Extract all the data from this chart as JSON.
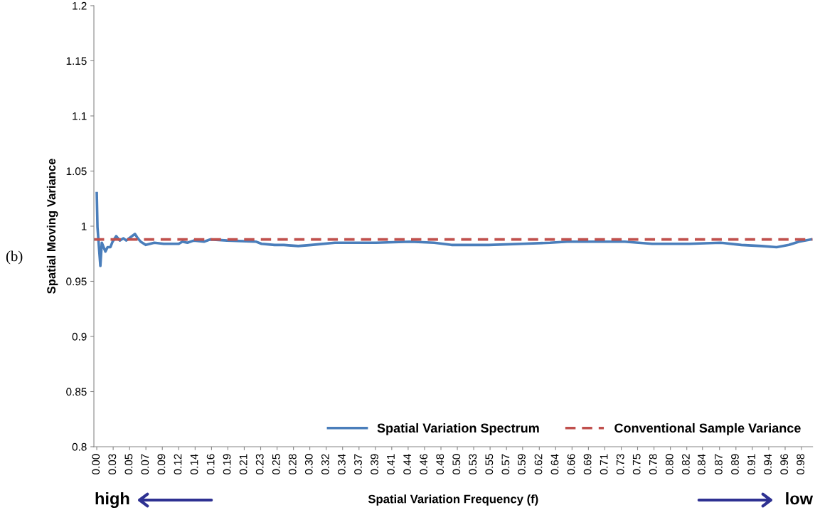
{
  "chart_data": {
    "type": "line",
    "xlabel": "Spatial Variation Frequency (f)",
    "ylabel": "Spatial Moving Variance",
    "xlim": [
      -0.001,
      0.998
    ],
    "ylim": [
      0.8,
      1.2
    ],
    "yticks": [
      0.8,
      0.85,
      0.9,
      0.95,
      1,
      1.05,
      1.1,
      1.15,
      1.2
    ],
    "xticks": [
      {
        "value": 0.003,
        "label": "0.00"
      },
      {
        "value": 0.0258,
        "label": "0.03"
      },
      {
        "value": 0.0486,
        "label": "0.05"
      },
      {
        "value": 0.0713,
        "label": "0.07"
      },
      {
        "value": 0.0941,
        "label": "0.09"
      },
      {
        "value": 0.1169,
        "label": "0.12"
      },
      {
        "value": 0.1397,
        "label": "0.14"
      },
      {
        "value": 0.1625,
        "label": "0.16"
      },
      {
        "value": 0.1852,
        "label": "0.19"
      },
      {
        "value": 0.208,
        "label": "0.21"
      },
      {
        "value": 0.2308,
        "label": "0.23"
      },
      {
        "value": 0.2536,
        "label": "0.25"
      },
      {
        "value": 0.2764,
        "label": "0.28"
      },
      {
        "value": 0.2991,
        "label": "0.30"
      },
      {
        "value": 0.3219,
        "label": "0.32"
      },
      {
        "value": 0.3447,
        "label": "0.34"
      },
      {
        "value": 0.3675,
        "label": "0.37"
      },
      {
        "value": 0.3903,
        "label": "0.39"
      },
      {
        "value": 0.413,
        "label": "0.41"
      },
      {
        "value": 0.4358,
        "label": "0.44"
      },
      {
        "value": 0.4586,
        "label": "0.46"
      },
      {
        "value": 0.4814,
        "label": "0.48"
      },
      {
        "value": 0.5042,
        "label": "0.50"
      },
      {
        "value": 0.5269,
        "label": "0.53"
      },
      {
        "value": 0.5497,
        "label": "0.55"
      },
      {
        "value": 0.5725,
        "label": "0.57"
      },
      {
        "value": 0.5949,
        "label": "0.59"
      },
      {
        "value": 0.6181,
        "label": "0.62"
      },
      {
        "value": 0.6408,
        "label": "0.64"
      },
      {
        "value": 0.6636,
        "label": "0.66"
      },
      {
        "value": 0.6864,
        "label": "0.69"
      },
      {
        "value": 0.7092,
        "label": "0.71"
      },
      {
        "value": 0.732,
        "label": "0.73"
      },
      {
        "value": 0.7547,
        "label": "0.75"
      },
      {
        "value": 0.7775,
        "label": "0.78"
      },
      {
        "value": 0.8003,
        "label": "0.80"
      },
      {
        "value": 0.8231,
        "label": "0.82"
      },
      {
        "value": 0.8449,
        "label": "0.84"
      },
      {
        "value": 0.8686,
        "label": "0.87"
      },
      {
        "value": 0.8914,
        "label": "0.89"
      },
      {
        "value": 0.9142,
        "label": "0.91"
      },
      {
        "value": 0.937,
        "label": "0.94"
      },
      {
        "value": 0.9598,
        "label": "0.96"
      },
      {
        "value": 0.9825,
        "label": "0.98"
      }
    ],
    "grid": false,
    "legend": "bottom right",
    "marker": "none",
    "series": [
      {
        "name": "Spatial Variation Spectrum",
        "color": "#4a7ebb",
        "line_style": "solid",
        "x": [
          0.003,
          0.004,
          0.008,
          0.01,
          0.015,
          0.018,
          0.022,
          0.025,
          0.03,
          0.035,
          0.04,
          0.044,
          0.048,
          0.056,
          0.06,
          0.064,
          0.071,
          0.083,
          0.096,
          0.117,
          0.122,
          0.129,
          0.138,
          0.152,
          0.161,
          0.184,
          0.224,
          0.232,
          0.25,
          0.263,
          0.283,
          0.301,
          0.334,
          0.391,
          0.439,
          0.472,
          0.496,
          0.548,
          0.595,
          0.633,
          0.657,
          0.7,
          0.737,
          0.775,
          0.827,
          0.87,
          0.899,
          0.927,
          0.948,
          0.965,
          0.979,
          0.996
        ],
        "values": [
          1.03,
          0.999,
          0.964,
          0.985,
          0.977,
          0.981,
          0.981,
          0.986,
          0.991,
          0.987,
          0.989,
          0.987,
          0.989,
          0.993,
          0.989,
          0.986,
          0.983,
          0.985,
          0.984,
          0.984,
          0.986,
          0.985,
          0.987,
          0.986,
          0.988,
          0.987,
          0.986,
          0.984,
          0.983,
          0.983,
          0.982,
          0.983,
          0.985,
          0.985,
          0.986,
          0.985,
          0.983,
          0.983,
          0.984,
          0.985,
          0.986,
          0.986,
          0.986,
          0.984,
          0.984,
          0.985,
          0.983,
          0.982,
          0.981,
          0.983,
          0.986,
          0.988
        ]
      }
    ],
    "ref_lines": [
      {
        "axis": "y",
        "value": 0.988,
        "label": "Conventional Sample Variance",
        "color": "#c0504d",
        "line_style": "dashed"
      }
    ],
    "annotations": [
      "(b)",
      "high",
      "low"
    ]
  }
}
